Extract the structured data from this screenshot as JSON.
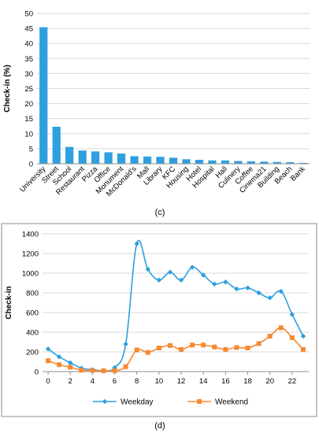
{
  "chart_data": [
    {
      "type": "bar",
      "panel_label": "(c)",
      "ylabel": "Check-in (%)",
      "ylim": [
        0,
        50
      ],
      "yticks": [
        0,
        5,
        10,
        15,
        20,
        25,
        30,
        35,
        40,
        45,
        50
      ],
      "color": "#2e9fdf",
      "categories": [
        "University",
        "Street",
        "School",
        "Restaurant",
        "Pizza",
        "Office",
        "Monument",
        "McDonald's",
        "Mall",
        "Library",
        "KFC",
        "Housing",
        "Hotel",
        "Hospital",
        "Hall",
        "Culinery",
        "Coffee",
        "Cinema21",
        "Building",
        "Beach",
        "Bank"
      ],
      "values": [
        45.4,
        12.3,
        5.6,
        4.4,
        4.1,
        3.8,
        3.4,
        2.5,
        2.4,
        2.3,
        2.0,
        1.5,
        1.3,
        1.1,
        1.1,
        0.9,
        0.8,
        0.7,
        0.6,
        0.5,
        0.3
      ]
    },
    {
      "type": "line",
      "panel_label": "(d)",
      "ylabel": "Check-in",
      "ylim": [
        0,
        1400
      ],
      "xlim": [
        -0.5,
        23.5
      ],
      "yticks": [
        0,
        200,
        400,
        600,
        800,
        1000,
        1200,
        1400
      ],
      "xticks": [
        0,
        2,
        4,
        6,
        8,
        10,
        12,
        14,
        16,
        18,
        20,
        22
      ],
      "legend_position": "bottom",
      "x": [
        0,
        1,
        2,
        3,
        4,
        5,
        6,
        7,
        8,
        9,
        10,
        11,
        12,
        13,
        14,
        15,
        16,
        17,
        18,
        19,
        20,
        21,
        22,
        23
      ],
      "series": [
        {
          "name": "Weekday",
          "color": "#2e9fdf",
          "marker": "diamond",
          "values": [
            230,
            150,
            90,
            35,
            20,
            10,
            40,
            280,
            1300,
            1040,
            930,
            1010,
            930,
            1060,
            980,
            890,
            910,
            840,
            850,
            800,
            750,
            815,
            580,
            360
          ]
        },
        {
          "name": "Weekend",
          "color": "#f58a32",
          "marker": "square",
          "values": [
            110,
            70,
            45,
            15,
            12,
            8,
            10,
            50,
            220,
            195,
            240,
            265,
            225,
            270,
            270,
            250,
            225,
            245,
            240,
            285,
            360,
            445,
            345,
            225
          ]
        }
      ]
    }
  ]
}
